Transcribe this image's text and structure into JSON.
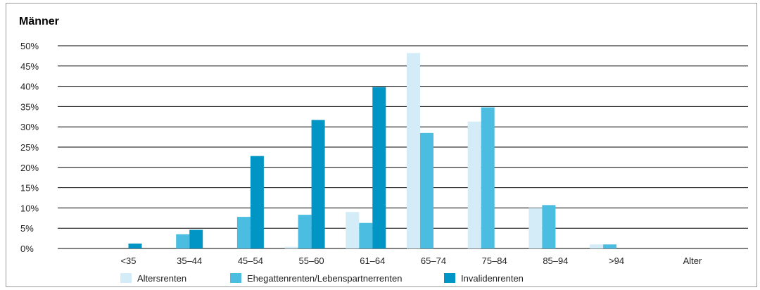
{
  "chart_data": {
    "type": "bar",
    "title": "Männer",
    "xlabel": "Alter",
    "ylabel": "",
    "ylim": [
      0,
      50
    ],
    "yticks": [
      0,
      5,
      10,
      15,
      20,
      25,
      30,
      35,
      40,
      45,
      50
    ],
    "ytick_labels": [
      "0%",
      "5%",
      "10%",
      "15%",
      "20%",
      "25%",
      "30%",
      "35%",
      "40%",
      "45%",
      "50%"
    ],
    "grid": true,
    "legend_position": "bottom",
    "categories": [
      "<35",
      "35–44",
      "45–54",
      "55–60",
      "61–64",
      "65–74",
      "75–84",
      "85–94",
      ">94"
    ],
    "series": [
      {
        "name": "Altersrenten",
        "color": "#d3ecf7",
        "values": [
          0,
          0,
          0,
          0.4,
          9,
          48.2,
          31.3,
          10,
          1
        ]
      },
      {
        "name": "Ehegattenrenten/Lebenspartnerrenten",
        "color": "#4bbde0",
        "values": [
          0,
          3.5,
          7.8,
          8.3,
          6.3,
          28.5,
          34.8,
          10.7,
          1
        ]
      },
      {
        "name": "Invalidenrenten",
        "color": "#0095c5",
        "values": [
          1.2,
          4.6,
          22.8,
          31.7,
          39.8,
          0,
          0,
          0,
          0
        ]
      }
    ]
  }
}
